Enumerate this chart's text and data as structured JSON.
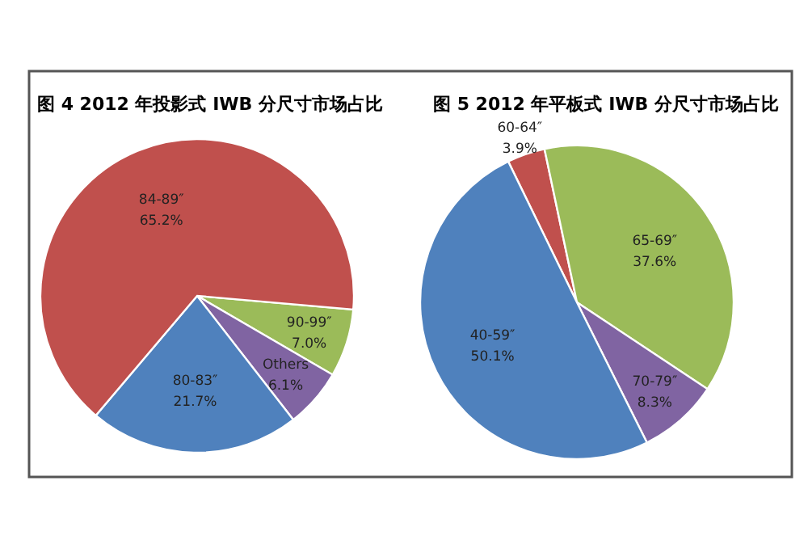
{
  "chart_data": [
    {
      "type": "pie",
      "title": "图 4  2012 年投影式 IWB 分尺寸市场占比",
      "categories": [
        "90-99″",
        "Others",
        "80-83″",
        "84-89″"
      ],
      "values": [
        7.0,
        6.1,
        21.7,
        65.2
      ],
      "value_labels": [
        "7.0%",
        "6.1%",
        "21.7%",
        "65.2%"
      ],
      "colors": [
        "#9bbb59",
        "#8064a2",
        "#4f81bd",
        "#c0504d"
      ]
    },
    {
      "type": "pie",
      "title": "图 5  2012 年平板式 IWB 分尺寸市场占比",
      "categories": [
        "60-64″",
        "65-69″",
        "70-79″",
        "40-59″"
      ],
      "values": [
        3.9,
        37.6,
        8.3,
        50.1
      ],
      "value_labels": [
        "3.9%",
        "37.6%",
        "8.3%",
        "50.1%"
      ],
      "colors": [
        "#c0504d",
        "#9bbb59",
        "#8064a2",
        "#4f81bd"
      ]
    }
  ]
}
